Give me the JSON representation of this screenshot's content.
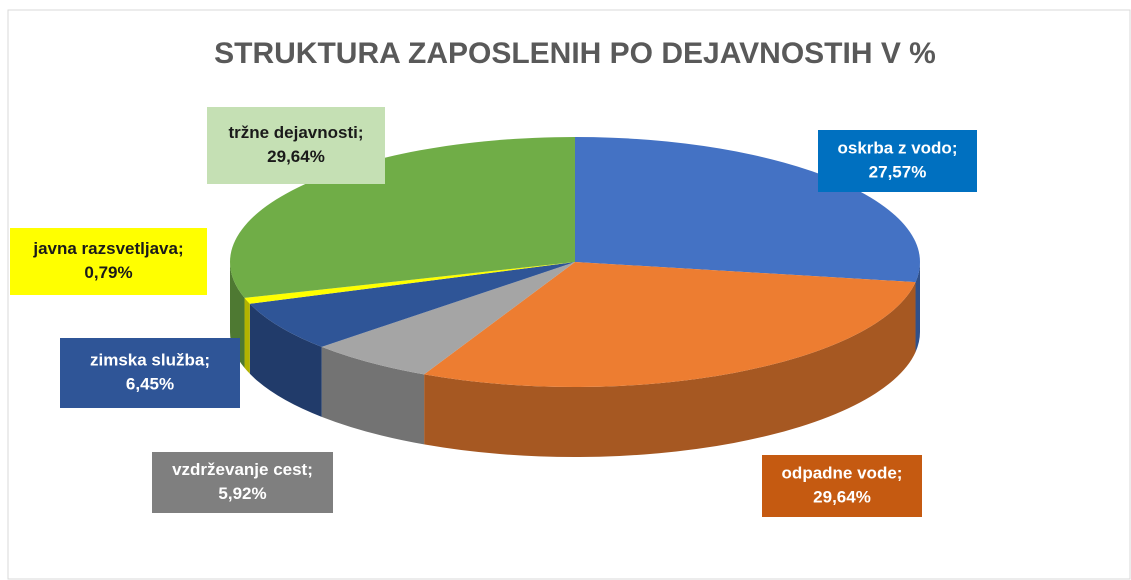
{
  "chart_data": {
    "type": "pie3d",
    "title": "STRUKTURA ZAPOSLENIH PO DEJAVNOSTIH V %",
    "categories": [
      "oskrba z vodo;",
      "odpadne vode;",
      "vzdrževanje cest;",
      "zimska služba;",
      "javna razsvetljava;",
      "tržne dejavnosti;"
    ],
    "values": [
      27.57,
      29.64,
      5.92,
      6.45,
      0.79,
      29.64
    ],
    "value_labels": [
      "27,57%",
      "29,64%",
      "5,92%",
      "6,45%",
      "0,79%",
      "29,64%"
    ],
    "colors": [
      "#4472c4",
      "#ed7d31",
      "#a5a5a5",
      "#2f5597",
      "#ffff00",
      "#70ad47"
    ],
    "label_colors": [
      "#0070c0",
      "#c55a11",
      "#7f7f7f",
      "#2f5597",
      "#ffff00",
      "#c5e0b4"
    ]
  }
}
